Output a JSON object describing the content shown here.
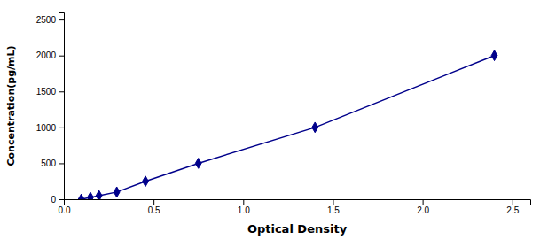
{
  "chart_data": {
    "type": "line",
    "x": [
      0.097,
      0.148,
      0.196,
      0.295,
      0.455,
      0.75,
      1.4,
      2.4
    ],
    "values": [
      0,
      25,
      50,
      100,
      250,
      500,
      1000,
      2000
    ],
    "color": "#00008B",
    "marker": "diamond",
    "xlabel": "Optical Density",
    "ylabel": "Concentration(pg/mL)",
    "xlim": [
      0.0,
      2.6
    ],
    "ylim": [
      0,
      2600
    ],
    "xticks": [
      {
        "value": 0,
        "label": "0.0"
      },
      0.5,
      {
        "value": 1,
        "label": "1.0"
      },
      1.5,
      {
        "value": 2,
        "label": "2.0"
      },
      2.5
    ],
    "yticks": [
      0,
      500,
      1000,
      1500,
      2000,
      2500
    ],
    "grid": false
  }
}
